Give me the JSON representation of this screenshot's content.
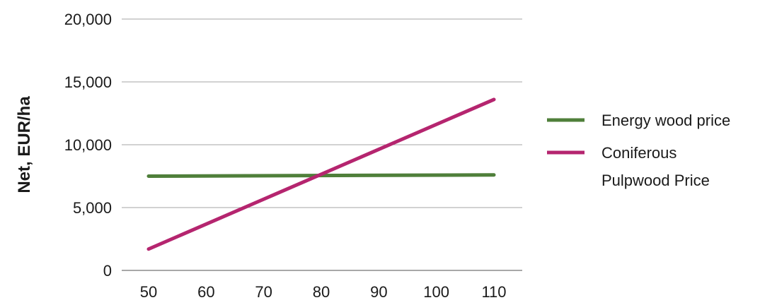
{
  "chart_data": {
    "type": "line",
    "title": "",
    "xlabel": "",
    "ylabel": "Net, EUR/ha",
    "x": [
      50,
      110
    ],
    "x_ticks": [
      "50",
      "60",
      "70",
      "80",
      "90",
      "100",
      "110"
    ],
    "y_ticks": [
      "0",
      "5,000",
      "10,000",
      "15,000",
      "20,000"
    ],
    "xlim": [
      50,
      110
    ],
    "ylim": [
      0,
      20000
    ],
    "grid": "horizontal",
    "legend_position": "right",
    "series": [
      {
        "name": "Energy wood price",
        "legend_lines": [
          "Energy wood price"
        ],
        "color": "#4f7f3a",
        "x": [
          50,
          110
        ],
        "values": [
          7500,
          7600
        ]
      },
      {
        "name": "Coniferous Pulpwood Price",
        "legend_lines": [
          "Coniferous",
          "Pulpwood Price"
        ],
        "color": "#b5256f",
        "x": [
          50,
          110
        ],
        "values": [
          1700,
          13600
        ]
      }
    ]
  }
}
